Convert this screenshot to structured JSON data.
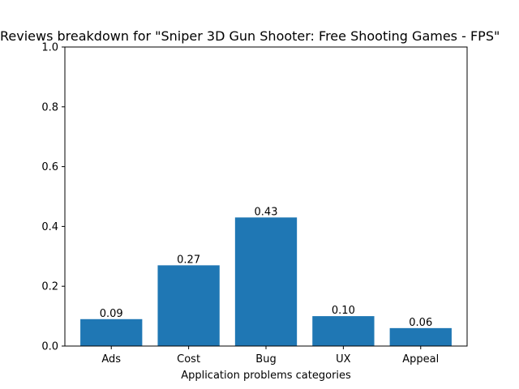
{
  "chart_data": {
    "type": "bar",
    "title": "Reviews breakdown for \"Sniper 3D Gun Shooter: Free Shooting Games - FPS\"",
    "xlabel": "Application problems categories",
    "ylabel": "",
    "categories": [
      "Ads",
      "Cost",
      "Bug",
      "UX",
      "Appeal"
    ],
    "values": [
      0.09,
      0.27,
      0.43,
      0.1,
      0.06
    ],
    "data_labels": [
      "0.09",
      "0.27",
      "0.43",
      "0.10",
      "0.06"
    ],
    "ylim": [
      0,
      1.0
    ],
    "yticks": [
      "0.0",
      "0.2",
      "0.4",
      "0.6",
      "0.8",
      "1.0"
    ],
    "bar_color": "#1f77b4",
    "grid": false,
    "legend": "none"
  }
}
